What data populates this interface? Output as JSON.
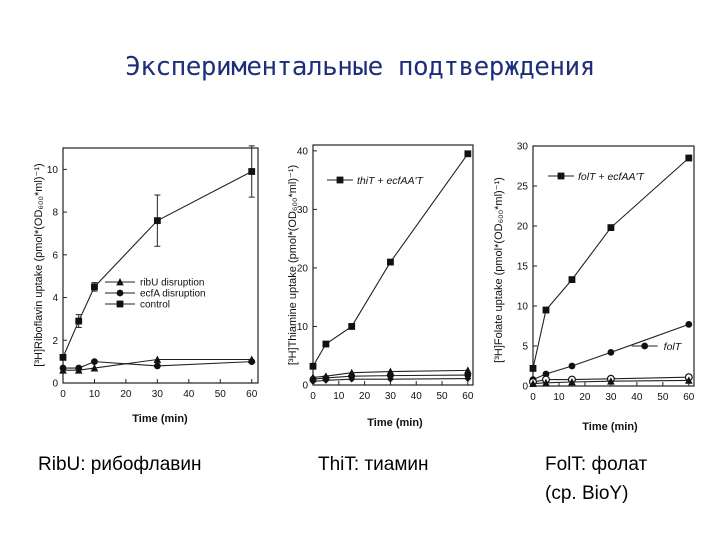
{
  "slide": {
    "title": "Экспериментальные подтверждения",
    "captions": [
      {
        "lines": [
          "RibU: рибофлавин"
        ]
      },
      {
        "lines": [
          "ThiT: тиамин"
        ]
      },
      {
        "lines": [
          "FolT: фолат",
          "(ср. BioY)"
        ]
      }
    ]
  },
  "chart_data": [
    {
      "type": "line",
      "title": "",
      "xlabel": "Time (min)",
      "ylabel": "[³H]Riboflavin uptake (pmol*(OD₆₀₀*ml)⁻¹)",
      "xlim": [
        0,
        62
      ],
      "ylim": [
        0,
        11
      ],
      "xticks": [
        0,
        10,
        20,
        30,
        40,
        50,
        60
      ],
      "yticks": [
        0,
        2,
        4,
        6,
        8,
        10
      ],
      "legend_position": "middle-right",
      "series": [
        {
          "name": "ribU disruption",
          "marker": "triangle",
          "x": [
            0,
            5,
            10,
            30,
            60
          ],
          "y": [
            0.6,
            0.6,
            0.7,
            1.1,
            1.1
          ]
        },
        {
          "name": "ecfA disruption",
          "marker": "circle",
          "x": [
            0,
            5,
            10,
            30,
            60
          ],
          "y": [
            0.7,
            0.7,
            1.0,
            0.8,
            1.0
          ]
        },
        {
          "name": "control",
          "marker": "square",
          "x": [
            0,
            5,
            10,
            30,
            60
          ],
          "y": [
            1.2,
            2.9,
            4.5,
            7.6,
            9.9
          ],
          "yerr": [
            0,
            0.3,
            0.2,
            1.2,
            1.2
          ]
        }
      ]
    },
    {
      "type": "line",
      "title": "",
      "xlabel": "Time (min)",
      "ylabel": "[³H]Thiamine uptake (pmol*(OD₆₀₀*ml)⁻¹)",
      "xlim": [
        0,
        62
      ],
      "ylim": [
        0,
        41
      ],
      "xticks": [
        0,
        10,
        20,
        30,
        40,
        50,
        60
      ],
      "yticks": [
        0,
        10,
        20,
        30,
        40
      ],
      "legend_position": "top-left",
      "series": [
        {
          "name": "thiT + ecfAA'T",
          "marker": "square",
          "x": [
            0,
            5,
            15,
            30,
            60
          ],
          "y": [
            3.2,
            7.0,
            10.0,
            21.0,
            39.5
          ]
        },
        {
          "marker": "triangle",
          "x": [
            0,
            5,
            15,
            30,
            60
          ],
          "y": [
            1.3,
            1.5,
            2.1,
            2.3,
            2.5
          ]
        },
        {
          "marker": "circle",
          "x": [
            0,
            5,
            15,
            30,
            60
          ],
          "y": [
            1.0,
            1.2,
            1.5,
            1.6,
            1.7
          ]
        },
        {
          "marker": "diamond",
          "x": [
            0,
            5,
            15,
            30,
            60
          ],
          "y": [
            0.6,
            0.8,
            1.0,
            1.0,
            1.1
          ]
        }
      ]
    },
    {
      "type": "line",
      "title": "",
      "xlabel": "Time (min)",
      "ylabel": "[³H]Folate uptake (pmol*(OD₆₀₀*ml)⁻¹)",
      "xlim": [
        0,
        62
      ],
      "ylim": [
        0,
        30
      ],
      "xticks": [
        0,
        10,
        20,
        30,
        40,
        50,
        60
      ],
      "yticks": [
        0,
        5,
        10,
        15,
        20,
        25,
        30
      ],
      "legend_position": "top-left",
      "series": [
        {
          "name": "folT + ecfAA'T",
          "marker": "square",
          "x": [
            0,
            5,
            15,
            30,
            60
          ],
          "y": [
            2.2,
            9.5,
            13.3,
            19.8,
            28.5
          ]
        },
        {
          "name": "folT",
          "marker": "circle",
          "x": [
            0,
            5,
            15,
            30,
            60
          ],
          "y": [
            0.8,
            1.5,
            2.5,
            4.2,
            7.7
          ]
        },
        {
          "marker": "open-circle",
          "x": [
            0,
            5,
            15,
            30,
            60
          ],
          "y": [
            0.5,
            0.8,
            0.8,
            0.9,
            1.1
          ]
        },
        {
          "marker": "triangle",
          "x": [
            0,
            5,
            15,
            30,
            60
          ],
          "y": [
            0.3,
            0.4,
            0.5,
            0.6,
            0.7
          ]
        }
      ]
    }
  ]
}
